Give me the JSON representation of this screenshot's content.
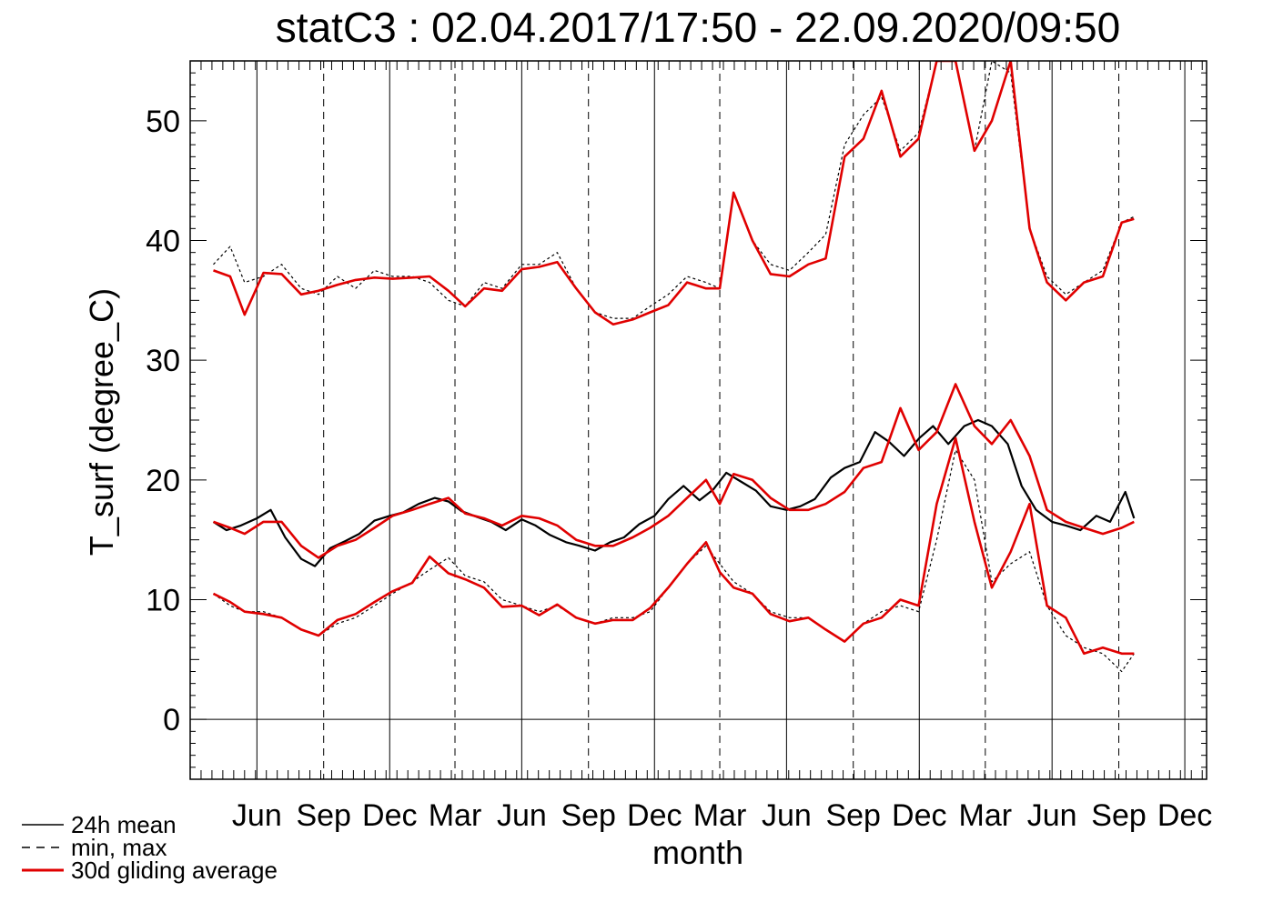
{
  "chart_data": {
    "type": "line",
    "title": "statC3 : 02.04.2017/17:50 - 22.09.2020/09:50",
    "xlabel": "month",
    "ylabel": "T_surf (degree_C)",
    "ylim": [
      -5,
      55
    ],
    "yticks": [
      0,
      10,
      20,
      30,
      40,
      50
    ],
    "x_tick_labels": [
      "Jun",
      "Sep",
      "Dec",
      "Mar",
      "Jun",
      "Sep",
      "Dec",
      "Mar",
      "Jun",
      "Sep",
      "Dec",
      "Mar",
      "Jun",
      "Sep",
      "Dec"
    ],
    "x_ticks": [
      "2017-06-01",
      "2017-09-01",
      "2017-12-01",
      "2018-03-01",
      "2018-06-01",
      "2018-09-01",
      "2018-12-01",
      "2019-03-01",
      "2019-06-01",
      "2019-09-01",
      "2019-12-01",
      "2020-03-01",
      "2020-06-01",
      "2020-09-01",
      "2020-12-01"
    ],
    "xlim": [
      "2017-03-01",
      "2020-12-31"
    ],
    "grid": "vertical month lines, solid at Jun/Dec, dashed at Mar/Sep",
    "zero_line": true,
    "legend": {
      "placement": "bottom-left",
      "entries": [
        {
          "label": "24h mean",
          "style": "solid",
          "color": "#000000"
        },
        {
          "label": "min, max",
          "style": "dashed",
          "color": "#000000"
        },
        {
          "label": "30d gliding average",
          "style": "solid",
          "color": "#e00000"
        }
      ]
    },
    "series": [
      {
        "name": "24h mean",
        "color": "#000000",
        "x": [
          "2017-04-02",
          "2017-04-20",
          "2017-05-10",
          "2017-06-01",
          "2017-06-20",
          "2017-07-10",
          "2017-08-01",
          "2017-08-20",
          "2017-09-10",
          "2017-10-01",
          "2017-10-20",
          "2017-11-10",
          "2017-12-01",
          "2017-12-20",
          "2018-01-10",
          "2018-02-01",
          "2018-02-20",
          "2018-03-10",
          "2018-04-01",
          "2018-04-20",
          "2018-05-10",
          "2018-06-01",
          "2018-06-20",
          "2018-07-10",
          "2018-08-01",
          "2018-08-20",
          "2018-09-10",
          "2018-10-01",
          "2018-10-20",
          "2018-11-10",
          "2018-12-01",
          "2018-12-20",
          "2019-01-10",
          "2019-02-01",
          "2019-02-20",
          "2019-03-10",
          "2019-04-01",
          "2019-04-20",
          "2019-05-10",
          "2019-06-01",
          "2019-06-20",
          "2019-07-10",
          "2019-08-01",
          "2019-08-20",
          "2019-09-10",
          "2019-10-01",
          "2019-10-20",
          "2019-11-10",
          "2019-12-01",
          "2019-12-20",
          "2020-01-10",
          "2020-02-01",
          "2020-02-20",
          "2020-03-10",
          "2020-04-01",
          "2020-04-20",
          "2020-05-10",
          "2020-06-01",
          "2020-06-20",
          "2020-07-10",
          "2020-08-01",
          "2020-08-20",
          "2020-09-10",
          "2020-09-22"
        ],
        "values": [
          16.5,
          15.8,
          16.2,
          16.8,
          17.5,
          15.2,
          13.4,
          12.8,
          14.3,
          14.9,
          15.5,
          16.6,
          17.0,
          17.3,
          18.0,
          18.5,
          18.2,
          17.4,
          16.9,
          16.5,
          15.8,
          16.7,
          16.2,
          15.4,
          14.8,
          14.5,
          14.1,
          14.8,
          15.2,
          16.3,
          17.0,
          18.4,
          19.5,
          18.3,
          19.2,
          20.6,
          19.8,
          19.1,
          17.8,
          17.5,
          17.8,
          18.4,
          20.2,
          21.0,
          21.5,
          24.0,
          23.2,
          22.0,
          23.5,
          24.5,
          23.0,
          24.5,
          25.0,
          24.5,
          23.0,
          19.5,
          17.5,
          16.5,
          16.2,
          15.8,
          17.0,
          16.5,
          19.0,
          16.8
        ]
      },
      {
        "name": "max",
        "color": "#000000",
        "dashed": true,
        "x": [
          "2017-04-02",
          "2017-04-25",
          "2017-05-15",
          "2017-06-10",
          "2017-07-05",
          "2017-08-01",
          "2017-08-25",
          "2017-09-20",
          "2017-10-15",
          "2017-11-10",
          "2017-12-05",
          "2018-01-01",
          "2018-01-25",
          "2018-02-20",
          "2018-03-15",
          "2018-04-10",
          "2018-05-05",
          "2018-06-01",
          "2018-06-25",
          "2018-07-20",
          "2018-08-15",
          "2018-09-10",
          "2018-10-05",
          "2018-11-01",
          "2018-11-25",
          "2018-12-20",
          "2019-01-15",
          "2019-02-10",
          "2019-03-01",
          "2019-03-20",
          "2019-04-15",
          "2019-05-10",
          "2019-06-05",
          "2019-07-01",
          "2019-07-25",
          "2019-08-20",
          "2019-09-15",
          "2019-10-10",
          "2019-11-05",
          "2019-11-30",
          "2019-12-25",
          "2020-01-20",
          "2020-02-15",
          "2020-03-10",
          "2020-04-05",
          "2020-05-01",
          "2020-05-25",
          "2020-06-20",
          "2020-07-15",
          "2020-08-10",
          "2020-09-05",
          "2020-09-22"
        ],
        "values": [
          38.0,
          39.5,
          36.5,
          37.0,
          38.0,
          36.0,
          35.5,
          37.0,
          36.0,
          37.5,
          37.0,
          37.0,
          36.5,
          35.0,
          34.5,
          36.5,
          36.0,
          38.0,
          38.0,
          39.0,
          36.0,
          34.0,
          33.5,
          33.5,
          34.5,
          35.5,
          37.0,
          36.5,
          36.0,
          44.0,
          40.0,
          38.0,
          37.5,
          39.0,
          40.5,
          48.0,
          50.5,
          52.0,
          47.5,
          49.0,
          55.0,
          55.0,
          47.5,
          55.0,
          54.0,
          41.0,
          37.0,
          35.5,
          36.5,
          37.5,
          41.5,
          42.0
        ]
      },
      {
        "name": "min",
        "color": "#000000",
        "dashed": true,
        "x": [
          "2017-04-02",
          "2017-04-25",
          "2017-05-15",
          "2017-06-10",
          "2017-07-05",
          "2017-08-01",
          "2017-08-25",
          "2017-09-20",
          "2017-10-15",
          "2017-11-10",
          "2017-12-05",
          "2018-01-01",
          "2018-01-25",
          "2018-02-20",
          "2018-03-15",
          "2018-04-10",
          "2018-05-05",
          "2018-06-01",
          "2018-06-25",
          "2018-07-20",
          "2018-08-15",
          "2018-09-10",
          "2018-10-05",
          "2018-11-01",
          "2018-11-25",
          "2018-12-20",
          "2019-01-15",
          "2019-02-10",
          "2019-03-01",
          "2019-03-20",
          "2019-04-15",
          "2019-05-10",
          "2019-06-05",
          "2019-07-01",
          "2019-07-25",
          "2019-08-20",
          "2019-09-15",
          "2019-10-10",
          "2019-11-05",
          "2019-11-30",
          "2019-12-25",
          "2020-01-20",
          "2020-02-15",
          "2020-03-10",
          "2020-04-05",
          "2020-05-01",
          "2020-05-25",
          "2020-06-20",
          "2020-07-15",
          "2020-08-10",
          "2020-09-05",
          "2020-09-22"
        ],
        "values": [
          10.5,
          9.5,
          9.0,
          9.0,
          8.5,
          7.5,
          7.0,
          8.0,
          8.5,
          9.5,
          10.5,
          11.5,
          12.5,
          13.5,
          12.0,
          11.5,
          10.0,
          9.5,
          9.0,
          9.5,
          8.5,
          8.0,
          8.5,
          8.5,
          9.0,
          11.0,
          13.0,
          14.5,
          13.0,
          11.5,
          10.5,
          9.0,
          8.5,
          8.5,
          7.5,
          6.5,
          8.0,
          9.0,
          9.5,
          9.0,
          15.0,
          22.5,
          20.0,
          11.5,
          13.0,
          14.0,
          9.5,
          7.0,
          6.0,
          5.5,
          4.0,
          5.5
        ]
      },
      {
        "name": "30d gliding average",
        "color": "#e00000",
        "x": [
          "2017-04-02",
          "2017-04-25",
          "2017-05-15",
          "2017-06-10",
          "2017-07-05",
          "2017-08-01",
          "2017-08-25",
          "2017-09-20",
          "2017-10-15",
          "2017-11-10",
          "2017-12-05",
          "2018-01-01",
          "2018-01-25",
          "2018-02-20",
          "2018-03-15",
          "2018-04-10",
          "2018-05-05",
          "2018-06-01",
          "2018-06-25",
          "2018-07-20",
          "2018-08-15",
          "2018-09-10",
          "2018-10-05",
          "2018-11-01",
          "2018-11-25",
          "2018-12-20",
          "2019-01-15",
          "2019-02-10",
          "2019-03-01",
          "2019-03-20",
          "2019-04-15",
          "2019-05-10",
          "2019-06-05",
          "2019-07-01",
          "2019-07-25",
          "2019-08-20",
          "2019-09-15",
          "2019-10-10",
          "2019-11-05",
          "2019-11-30",
          "2019-12-25",
          "2020-01-20",
          "2020-02-15",
          "2020-03-10",
          "2020-04-05",
          "2020-05-01",
          "2020-05-25",
          "2020-06-20",
          "2020-07-15",
          "2020-08-10",
          "2020-09-05",
          "2020-09-22"
        ],
        "values": [
          16.5,
          16.0,
          15.5,
          16.5,
          16.5,
          14.5,
          13.5,
          14.5,
          15.0,
          16.0,
          17.0,
          17.5,
          18.0,
          18.5,
          17.2,
          16.8,
          16.2,
          17.0,
          16.8,
          16.2,
          15.0,
          14.5,
          14.5,
          15.2,
          16.0,
          17.0,
          18.5,
          20.0,
          18.0,
          20.5,
          20.0,
          18.5,
          17.5,
          17.5,
          18.0,
          19.0,
          21.0,
          21.5,
          26.0,
          22.5,
          24.0,
          28.0,
          24.5,
          23.0,
          25.0,
          22.0,
          17.5,
          16.5,
          16.0,
          15.5,
          16.0,
          16.5
        ]
      },
      {
        "name": "30d gliding average (max)",
        "color": "#e00000",
        "x": [
          "2017-04-02",
          "2017-04-25",
          "2017-05-15",
          "2017-06-10",
          "2017-07-05",
          "2017-08-01",
          "2017-08-25",
          "2017-09-20",
          "2017-10-15",
          "2017-11-10",
          "2017-12-05",
          "2018-01-01",
          "2018-01-25",
          "2018-02-20",
          "2018-03-15",
          "2018-04-10",
          "2018-05-05",
          "2018-06-01",
          "2018-06-25",
          "2018-07-20",
          "2018-08-15",
          "2018-09-10",
          "2018-10-05",
          "2018-11-01",
          "2018-11-25",
          "2018-12-20",
          "2019-01-15",
          "2019-02-10",
          "2019-03-01",
          "2019-03-20",
          "2019-04-15",
          "2019-05-10",
          "2019-06-05",
          "2019-07-01",
          "2019-07-25",
          "2019-08-20",
          "2019-09-15",
          "2019-10-10",
          "2019-11-05",
          "2019-11-30",
          "2019-12-25",
          "2020-01-20",
          "2020-02-15",
          "2020-03-10",
          "2020-04-05",
          "2020-05-01",
          "2020-05-25",
          "2020-06-20",
          "2020-07-15",
          "2020-08-10",
          "2020-09-05",
          "2020-09-22"
        ],
        "values": [
          37.5,
          37.0,
          33.8,
          37.3,
          37.2,
          35.5,
          35.8,
          36.3,
          36.7,
          36.9,
          36.8,
          36.9,
          37.0,
          35.8,
          34.5,
          36.0,
          35.8,
          37.6,
          37.8,
          38.2,
          36.0,
          34.0,
          33.0,
          33.4,
          34.0,
          34.6,
          36.5,
          36.0,
          36.0,
          44.0,
          40.0,
          37.2,
          37.0,
          38.0,
          38.5,
          47.0,
          48.5,
          52.5,
          47.0,
          48.5,
          55.0,
          55.0,
          47.5,
          50.0,
          55.0,
          41.0,
          36.5,
          35.0,
          36.5,
          37.0,
          41.5,
          41.8
        ]
      },
      {
        "name": "30d gliding average (min)",
        "color": "#e00000",
        "x": [
          "2017-04-02",
          "2017-04-25",
          "2017-05-15",
          "2017-06-10",
          "2017-07-05",
          "2017-08-01",
          "2017-08-25",
          "2017-09-20",
          "2017-10-15",
          "2017-11-10",
          "2017-12-05",
          "2018-01-01",
          "2018-01-25",
          "2018-02-20",
          "2018-03-15",
          "2018-04-10",
          "2018-05-05",
          "2018-06-01",
          "2018-06-25",
          "2018-07-20",
          "2018-08-15",
          "2018-09-10",
          "2018-10-05",
          "2018-11-01",
          "2018-11-25",
          "2018-12-20",
          "2019-01-15",
          "2019-02-10",
          "2019-03-01",
          "2019-03-20",
          "2019-04-15",
          "2019-05-10",
          "2019-06-05",
          "2019-07-01",
          "2019-07-25",
          "2019-08-20",
          "2019-09-15",
          "2019-10-10",
          "2019-11-05",
          "2019-11-30",
          "2019-12-25",
          "2020-01-20",
          "2020-02-15",
          "2020-03-10",
          "2020-04-05",
          "2020-05-01",
          "2020-05-25",
          "2020-06-20",
          "2020-07-15",
          "2020-08-10",
          "2020-09-05",
          "2020-09-22"
        ],
        "values": [
          10.5,
          9.8,
          9.0,
          8.8,
          8.5,
          7.5,
          7.0,
          8.3,
          8.8,
          9.8,
          10.7,
          11.4,
          13.6,
          12.2,
          11.7,
          11.0,
          9.4,
          9.5,
          8.7,
          9.6,
          8.5,
          8.0,
          8.3,
          8.3,
          9.3,
          11.0,
          13.0,
          14.8,
          12.3,
          11.0,
          10.5,
          8.8,
          8.2,
          8.5,
          7.5,
          6.5,
          8.0,
          8.5,
          10.0,
          9.5,
          18.0,
          23.5,
          16.5,
          11.0,
          14.0,
          18.0,
          9.5,
          8.5,
          5.5,
          6.0,
          5.5,
          5.5
        ]
      }
    ]
  }
}
